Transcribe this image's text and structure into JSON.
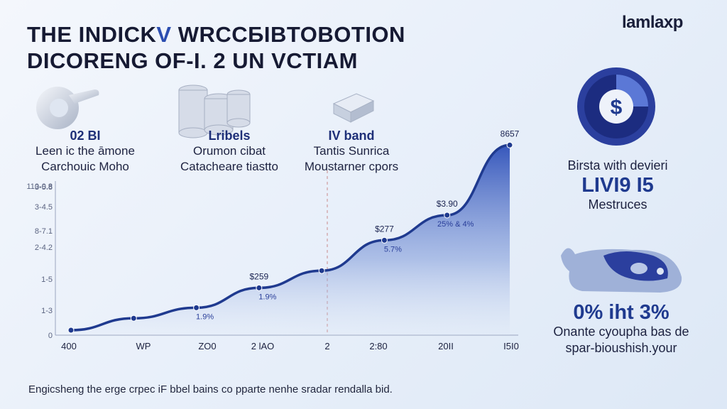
{
  "header": {
    "title_line1_a": "THE INDICK",
    "title_line1_b": "V",
    "title_line1_c": " WRCCБIBTOBOTION",
    "title_line2": "DICORENG OF-I. 2 UN VCTIAM",
    "logo": "lamlaxp"
  },
  "stats": [
    {
      "head": "02 BI",
      "line1": "Leen ic the āmone",
      "line2": "Carchouic Moho",
      "icon": "toggle-ring-icon"
    },
    {
      "head": "Lribels",
      "line1": "Orumon cibat",
      "line2": "Catacheare tiastto",
      "icon": "coin-stacks-icon"
    },
    {
      "head": "IV band",
      "line1": "Tantis Sunrica",
      "line2": "Moustarner cpors",
      "icon": "crystal-box-icon"
    }
  ],
  "right_panel": {
    "card1": {
      "line1": "Birsta with devieri",
      "big": "LIVI9 I5",
      "line2": "Mestruces",
      "icon": "dollar-gauge-icon"
    },
    "card2": {
      "big": "0% iht 3%",
      "line1": "Onante cyoupha bas de",
      "line2": "spar-bioushish.your",
      "icon": "whale-icon"
    }
  },
  "footer": "Engicsheng the erge crpec iF bbel bains co pparte nenhe sradar rendalla bid.",
  "colors": {
    "accent": "#2b4db0",
    "line": "#1f3a8f",
    "fill_top": "#2d4fb8",
    "title": "#161a33"
  },
  "chart_data": {
    "type": "area",
    "title": "",
    "xlabel": "",
    "ylabel": "",
    "x_tick_labels": [
      "400",
      "WP",
      "ZO0",
      "2 lAO",
      "2",
      "2:80",
      "20II",
      "I5I0"
    ],
    "y_tick_labels": [
      "0",
      "1-3",
      "1-5",
      "2-4.2",
      "8-7.1",
      "3-4.5",
      "3-5.8",
      "110-0.8"
    ],
    "points": [
      {
        "x": 0,
        "y": 0.0
      },
      {
        "x": 1,
        "y": 0.09
      },
      {
        "x": 2,
        "y": 0.17,
        "pct": "1.9%"
      },
      {
        "x": 3,
        "y": 0.32,
        "value": "$259",
        "pct": "1.9%"
      },
      {
        "x": 4,
        "y": 0.45
      },
      {
        "x": 5,
        "y": 0.68,
        "value": "$277",
        "pct": "5.7%"
      },
      {
        "x": 6,
        "y": 0.87,
        "value": "$3.90",
        "pct": "25% & 4%"
      },
      {
        "x": 7,
        "y": 1.4,
        "value": "8657"
      }
    ],
    "ylim": [
      0,
      1.45
    ],
    "grid": false,
    "legend": "none"
  }
}
